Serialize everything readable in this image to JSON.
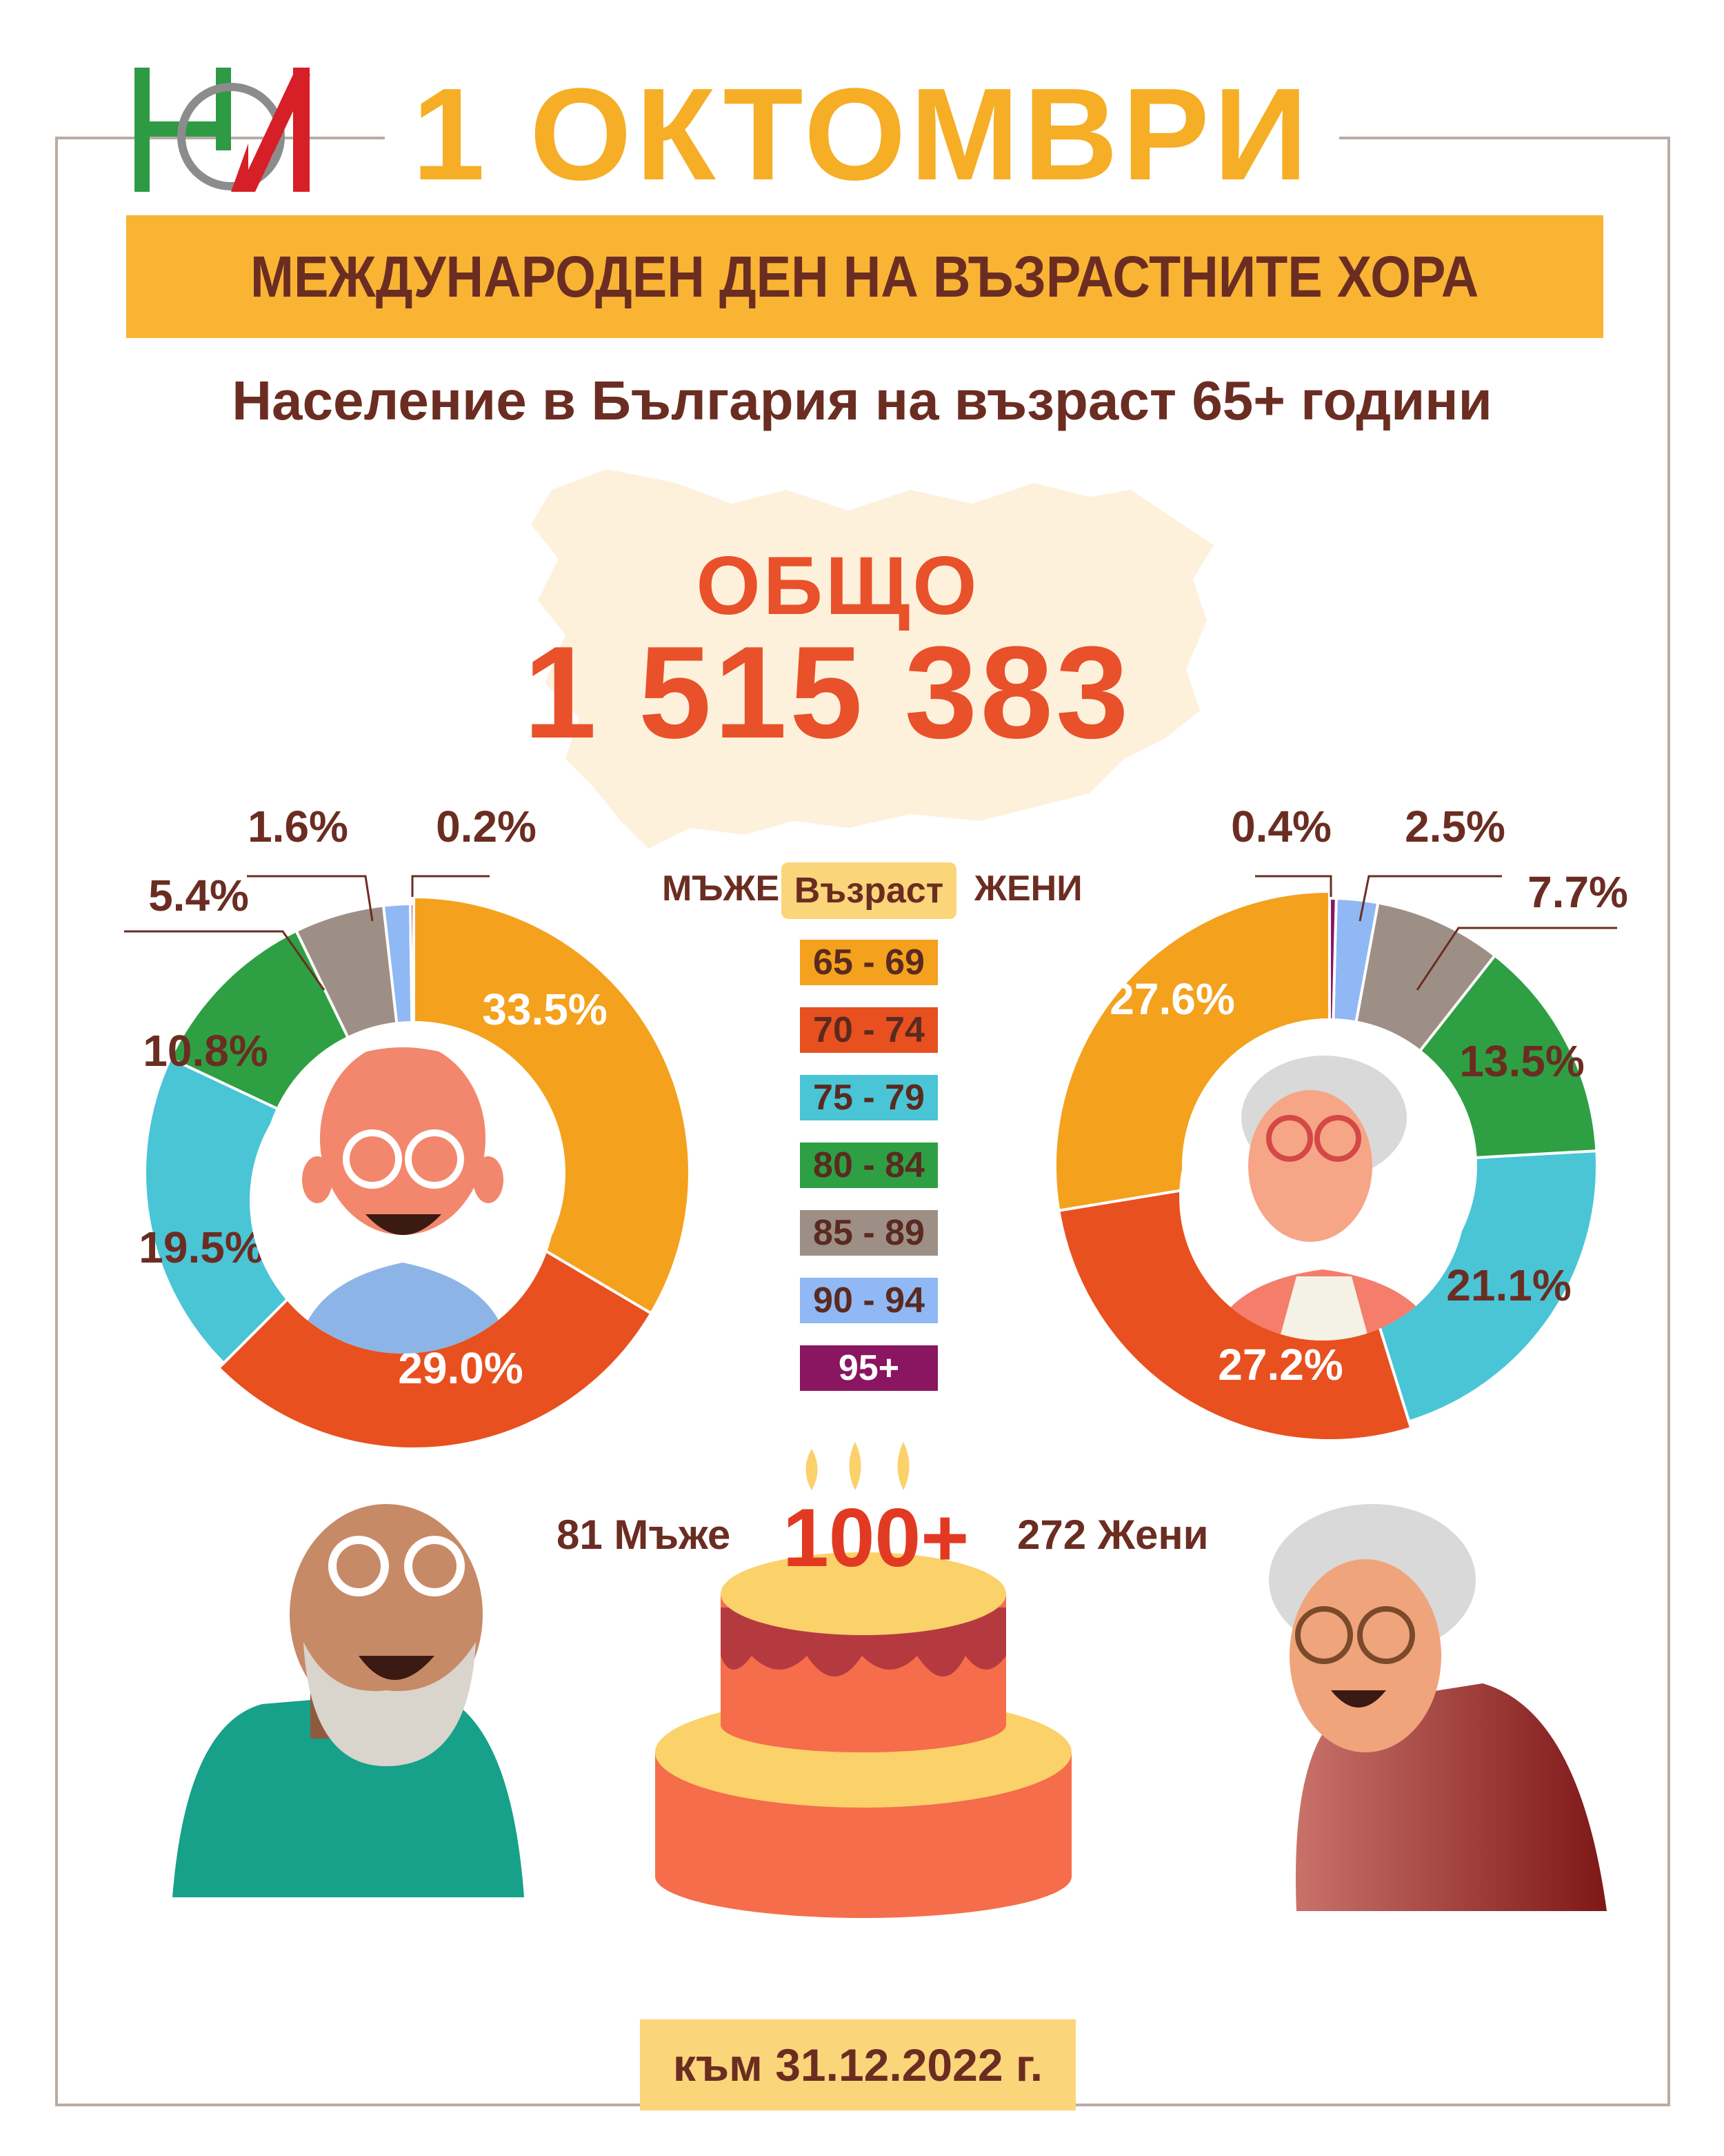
{
  "header": {
    "logo_text": "НСИ",
    "date": "1 ОКТОМВРИ",
    "banner": "МЕЖДУНАРОДЕН ДЕН НА ВЪЗРАСТНИТЕ ХОРА",
    "subtitle": "Население в България на възраст 65+ години"
  },
  "total": {
    "label": "ОБЩО",
    "value": "1 515 383"
  },
  "legend": {
    "men": "МЪЖЕ",
    "age": "Възраст",
    "women": "ЖЕНИ",
    "groups": [
      {
        "label": "65 - 69",
        "color": "#f4a11d"
      },
      {
        "label": "70 - 74",
        "color": "#e8501f"
      },
      {
        "label": "75 - 79",
        "color": "#49c5d6"
      },
      {
        "label": "80 - 84",
        "color": "#2ea043"
      },
      {
        "label": "85 - 89",
        "color": "#9e8f86"
      },
      {
        "label": "90 - 94",
        "color": "#8fb8f4"
      },
      {
        "label": "95+",
        "color": "#8a1560"
      }
    ]
  },
  "chart_data": [
    {
      "type": "pie",
      "name": "МЪЖЕ",
      "categories": [
        "65 - 69",
        "70 - 74",
        "75 - 79",
        "80 - 84",
        "85 - 89",
        "90 - 94",
        "95+"
      ],
      "values": [
        33.5,
        29.0,
        19.5,
        10.8,
        5.4,
        1.6,
        0.2
      ],
      "labels": [
        "33.5%",
        "29.0%",
        "19.5%",
        "10.8%",
        "5.4%",
        "1.6%",
        "0.2%"
      ],
      "direction": "clockwise"
    },
    {
      "type": "pie",
      "name": "ЖЕНИ",
      "categories": [
        "65 - 69",
        "70 - 74",
        "75 - 79",
        "80 - 84",
        "85 - 89",
        "90 - 94",
        "95+"
      ],
      "values": [
        27.6,
        27.2,
        21.1,
        13.5,
        7.7,
        2.5,
        0.4
      ],
      "labels": [
        "27.6%",
        "27.2%",
        "21.1%",
        "13.5%",
        "7.7%",
        "2.5%",
        "0.4%"
      ],
      "direction": "counterclockwise"
    }
  ],
  "centenarians": {
    "title": "100+",
    "men": "81 Мъже",
    "women": "272 Жени"
  },
  "footer": {
    "date": "към 31.12.2022 г."
  },
  "colors": {
    "brand_orange": "#f9b434",
    "title_brown": "#6b2d22",
    "total_red": "#e8512a"
  }
}
